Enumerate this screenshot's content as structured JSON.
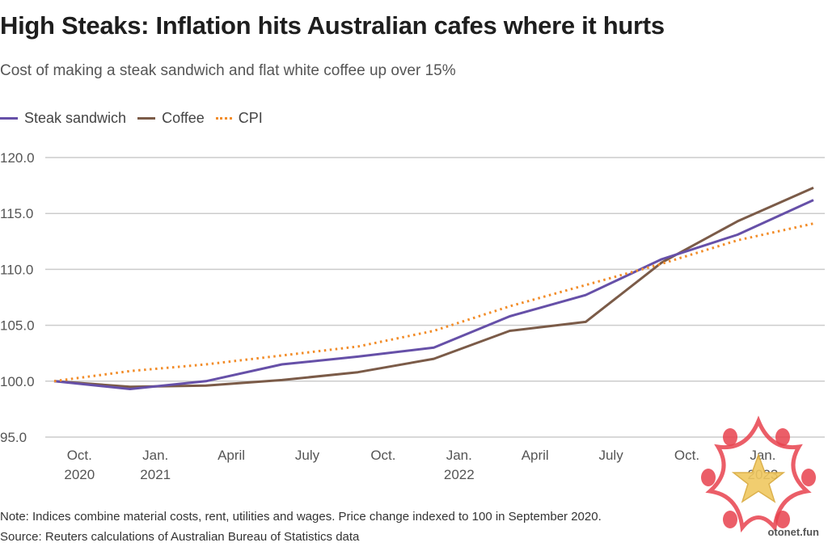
{
  "header": {
    "title": "High Steaks: Inflation hits Australian cafes where it hurts",
    "subtitle": "Cost of making a steak sandwich and flat white coffee up over 15%"
  },
  "footer": {
    "note": "Note: Indices combine material costs, rent, utilities and wages. Price change indexed to 100 in September 2020.",
    "source": "Source: Reuters calculations of Australian Bureau of Statistics data"
  },
  "watermark": {
    "text": "otonet.fun"
  },
  "colors": {
    "steak": "#6650a8",
    "coffee": "#7b5b48",
    "cpi": "#f28c28",
    "grid": "#cccccc",
    "tick_text": "#555555"
  },
  "chart_data": {
    "type": "line",
    "title": "High Steaks: Inflation hits Australian cafes where it hurts",
    "subtitle": "Cost of making a steak sandwich and flat white coffee up over 15%",
    "xlabel": "",
    "ylabel": "",
    "x": [
      "Sep 2020",
      "Dec 2020",
      "Mar 2021",
      "Jun 2021",
      "Sep 2021",
      "Dec 2021",
      "Mar 2022",
      "Jun 2022",
      "Sep 2022",
      "Dec 2022",
      "Mar 2023"
    ],
    "x_month_index": [
      0,
      3,
      6,
      9,
      12,
      15,
      18,
      21,
      24,
      27,
      30
    ],
    "series": [
      {
        "name": "Steak sandwich",
        "style": "solid",
        "color": "#6650a8",
        "values": [
          100.0,
          99.3,
          100.0,
          101.5,
          102.2,
          103.0,
          105.8,
          107.7,
          110.9,
          113.1,
          116.2
        ]
      },
      {
        "name": "Coffee",
        "style": "solid",
        "color": "#7b5b48",
        "values": [
          100.0,
          99.5,
          99.6,
          100.1,
          100.8,
          102.0,
          104.5,
          105.3,
          110.6,
          114.3,
          117.3
        ]
      },
      {
        "name": "CPI",
        "style": "dotted",
        "color": "#f28c28",
        "values": [
          100.0,
          100.9,
          101.5,
          102.3,
          103.1,
          104.5,
          106.7,
          108.6,
          110.5,
          112.6,
          114.1
        ]
      }
    ],
    "ylim": [
      95,
      120
    ],
    "yticks": [
      {
        "value": 120,
        "label": "120.0"
      },
      {
        "value": 115,
        "label": "115.0"
      },
      {
        "value": 110,
        "label": "110.0"
      },
      {
        "value": 105,
        "label": "105.0"
      },
      {
        "value": 100,
        "label": "100.0"
      },
      {
        "value": 95,
        "label": "95.0"
      }
    ],
    "xticks": [
      {
        "month_index": 1,
        "line1": "Oct.",
        "line2": "2020"
      },
      {
        "month_index": 4,
        "line1": "Jan.",
        "line2": "2021"
      },
      {
        "month_index": 7,
        "line1": "April",
        "line2": ""
      },
      {
        "month_index": 10,
        "line1": "July",
        "line2": ""
      },
      {
        "month_index": 13,
        "line1": "Oct.",
        "line2": ""
      },
      {
        "month_index": 16,
        "line1": "Jan.",
        "line2": "2022"
      },
      {
        "month_index": 19,
        "line1": "April",
        "line2": ""
      },
      {
        "month_index": 22,
        "line1": "July",
        "line2": ""
      },
      {
        "month_index": 25,
        "line1": "Oct.",
        "line2": ""
      },
      {
        "month_index": 28,
        "line1": "Jan.",
        "line2": "2023"
      }
    ],
    "grid": true,
    "legend": "top-left"
  }
}
